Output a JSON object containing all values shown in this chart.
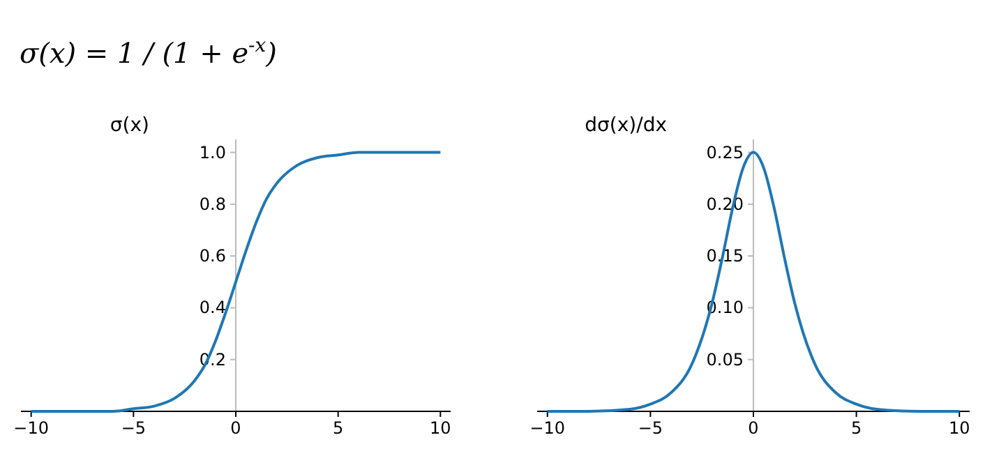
{
  "chart_data": [
    {
      "type": "line",
      "title": "σ(x) = 1 / (1 + e$^{-x}$)",
      "ylabel": "σ(x)",
      "x": [
        -10,
        -8,
        -6,
        -5,
        -4,
        -3,
        -2,
        -1.5,
        -1,
        -0.5,
        0,
        0.5,
        1,
        1.5,
        2,
        3,
        4,
        5,
        6,
        8,
        10
      ],
      "series": [
        {
          "color": "#1f77b4",
          "values": [
            0,
            0,
            0,
            0.01,
            0.02,
            0.05,
            0.12,
            0.18,
            0.27,
            0.38,
            0.5,
            0.62,
            0.73,
            0.82,
            0.88,
            0.95,
            0.98,
            0.99,
            1,
            1,
            1
          ]
        }
      ],
      "xlim": [
        -10.5,
        10.5
      ],
      "xticks": [
        -10,
        -5,
        0,
        5,
        10
      ],
      "ylim": [
        0,
        1.05
      ],
      "yticks": [
        0.2,
        0.4,
        0.6,
        0.8,
        {
          "value": 1,
          "label": "1.0"
        }
      ]
    },
    {
      "type": "line",
      "ylabel": "dσ(x)/dx",
      "x": [
        -10,
        -8,
        -6,
        -5,
        -4,
        -3,
        -2,
        -1.5,
        -1,
        -0.5,
        0,
        0.5,
        1,
        1.5,
        2,
        3,
        4,
        5,
        6,
        8,
        10
      ],
      "series": [
        {
          "color": "#1f77b4",
          "values": [
            0,
            0,
            0.002,
            0.007,
            0.018,
            0.045,
            0.105,
            0.149,
            0.197,
            0.235,
            0.25,
            0.235,
            0.197,
            0.149,
            0.105,
            0.045,
            0.018,
            0.007,
            0.002,
            0,
            0
          ]
        }
      ],
      "xlim": [
        -10.5,
        10.5
      ],
      "xticks": [
        -10,
        -5,
        0,
        5,
        10
      ],
      "ylim": [
        0,
        0.2625
      ],
      "yticks": [
        0.05,
        {
          "value": 0.1,
          "label": "0.10"
        },
        0.15,
        {
          "value": 0.2,
          "label": "0.20"
        },
        0.25
      ]
    }
  ]
}
